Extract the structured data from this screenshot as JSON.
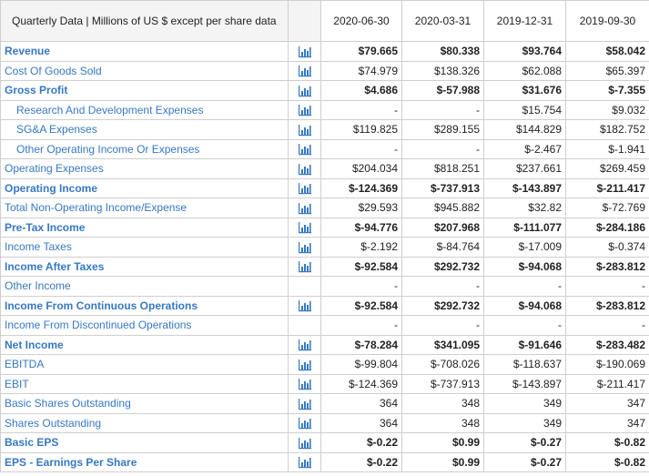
{
  "header": {
    "title": "Quarterly Data | Millions of US $ except per share data",
    "dates": [
      "2020-06-30",
      "2020-03-31",
      "2019-12-31",
      "2019-09-30"
    ]
  },
  "icon_name": "bar-chart-icon",
  "colors": {
    "label": "#3778c2",
    "icon": "#3778c2"
  },
  "rows": [
    {
      "label": "Revenue",
      "bold": true,
      "indent": false,
      "icon": true,
      "values": [
        "$79.665",
        "$80.338",
        "$93.764",
        "$58.042"
      ]
    },
    {
      "label": "Cost Of Goods Sold",
      "bold": false,
      "indent": false,
      "icon": true,
      "values": [
        "$74.979",
        "$138.326",
        "$62.088",
        "$65.397"
      ]
    },
    {
      "label": "Gross Profit",
      "bold": true,
      "indent": false,
      "icon": true,
      "values": [
        "$4.686",
        "$-57.988",
        "$31.676",
        "$-7.355"
      ]
    },
    {
      "label": "Research And Development Expenses",
      "bold": false,
      "indent": true,
      "icon": true,
      "values": [
        "-",
        "-",
        "$15.754",
        "$9.032"
      ]
    },
    {
      "label": "SG&A Expenses",
      "bold": false,
      "indent": true,
      "icon": true,
      "values": [
        "$119.825",
        "$289.155",
        "$144.829",
        "$182.752"
      ]
    },
    {
      "label": "Other Operating Income Or Expenses",
      "bold": false,
      "indent": true,
      "icon": true,
      "values": [
        "-",
        "-",
        "$-2.467",
        "$-1.941"
      ]
    },
    {
      "label": "Operating Expenses",
      "bold": false,
      "indent": false,
      "icon": true,
      "values": [
        "$204.034",
        "$818.251",
        "$237.661",
        "$269.459"
      ]
    },
    {
      "label": "Operating Income",
      "bold": true,
      "indent": false,
      "icon": true,
      "values": [
        "$-124.369",
        "$-737.913",
        "$-143.897",
        "$-211.417"
      ]
    },
    {
      "label": "Total Non-Operating Income/Expense",
      "bold": false,
      "indent": false,
      "icon": true,
      "values": [
        "$29.593",
        "$945.882",
        "$32.82",
        "$-72.769"
      ]
    },
    {
      "label": "Pre-Tax Income",
      "bold": true,
      "indent": false,
      "icon": true,
      "values": [
        "$-94.776",
        "$207.968",
        "$-111.077",
        "$-284.186"
      ]
    },
    {
      "label": "Income Taxes",
      "bold": false,
      "indent": false,
      "icon": true,
      "values": [
        "$-2.192",
        "$-84.764",
        "$-17.009",
        "$-0.374"
      ]
    },
    {
      "label": "Income After Taxes",
      "bold": true,
      "indent": false,
      "icon": true,
      "values": [
        "$-92.584",
        "$292.732",
        "$-94.068",
        "$-283.812"
      ]
    },
    {
      "label": "Other Income",
      "bold": false,
      "indent": false,
      "icon": false,
      "values": [
        "-",
        "-",
        "-",
        "-"
      ]
    },
    {
      "label": "Income From Continuous Operations",
      "bold": true,
      "indent": false,
      "icon": true,
      "values": [
        "$-92.584",
        "$292.732",
        "$-94.068",
        "$-283.812"
      ]
    },
    {
      "label": "Income From Discontinued Operations",
      "bold": false,
      "indent": false,
      "icon": false,
      "values": [
        "-",
        "-",
        "-",
        "-"
      ]
    },
    {
      "label": "Net Income",
      "bold": true,
      "indent": false,
      "icon": true,
      "values": [
        "$-78.284",
        "$341.095",
        "$-91.646",
        "$-283.482"
      ]
    },
    {
      "label": "EBITDA",
      "bold": false,
      "indent": false,
      "icon": true,
      "values": [
        "$-99.804",
        "$-708.026",
        "$-118.637",
        "$-190.069"
      ]
    },
    {
      "label": "EBIT",
      "bold": false,
      "indent": false,
      "icon": true,
      "values": [
        "$-124.369",
        "$-737.913",
        "$-143.897",
        "$-211.417"
      ]
    },
    {
      "label": "Basic Shares Outstanding",
      "bold": false,
      "indent": false,
      "icon": true,
      "values": [
        "364",
        "348",
        "349",
        "347"
      ]
    },
    {
      "label": "Shares Outstanding",
      "bold": false,
      "indent": false,
      "icon": true,
      "values": [
        "364",
        "348",
        "349",
        "347"
      ]
    },
    {
      "label": "Basic EPS",
      "bold": true,
      "indent": false,
      "icon": true,
      "values": [
        "$-0.22",
        "$0.99",
        "$-0.27",
        "$-0.82"
      ]
    },
    {
      "label": "EPS - Earnings Per Share",
      "bold": true,
      "indent": false,
      "icon": true,
      "values": [
        "$-0.22",
        "$0.99",
        "$-0.27",
        "$-0.82"
      ]
    }
  ]
}
